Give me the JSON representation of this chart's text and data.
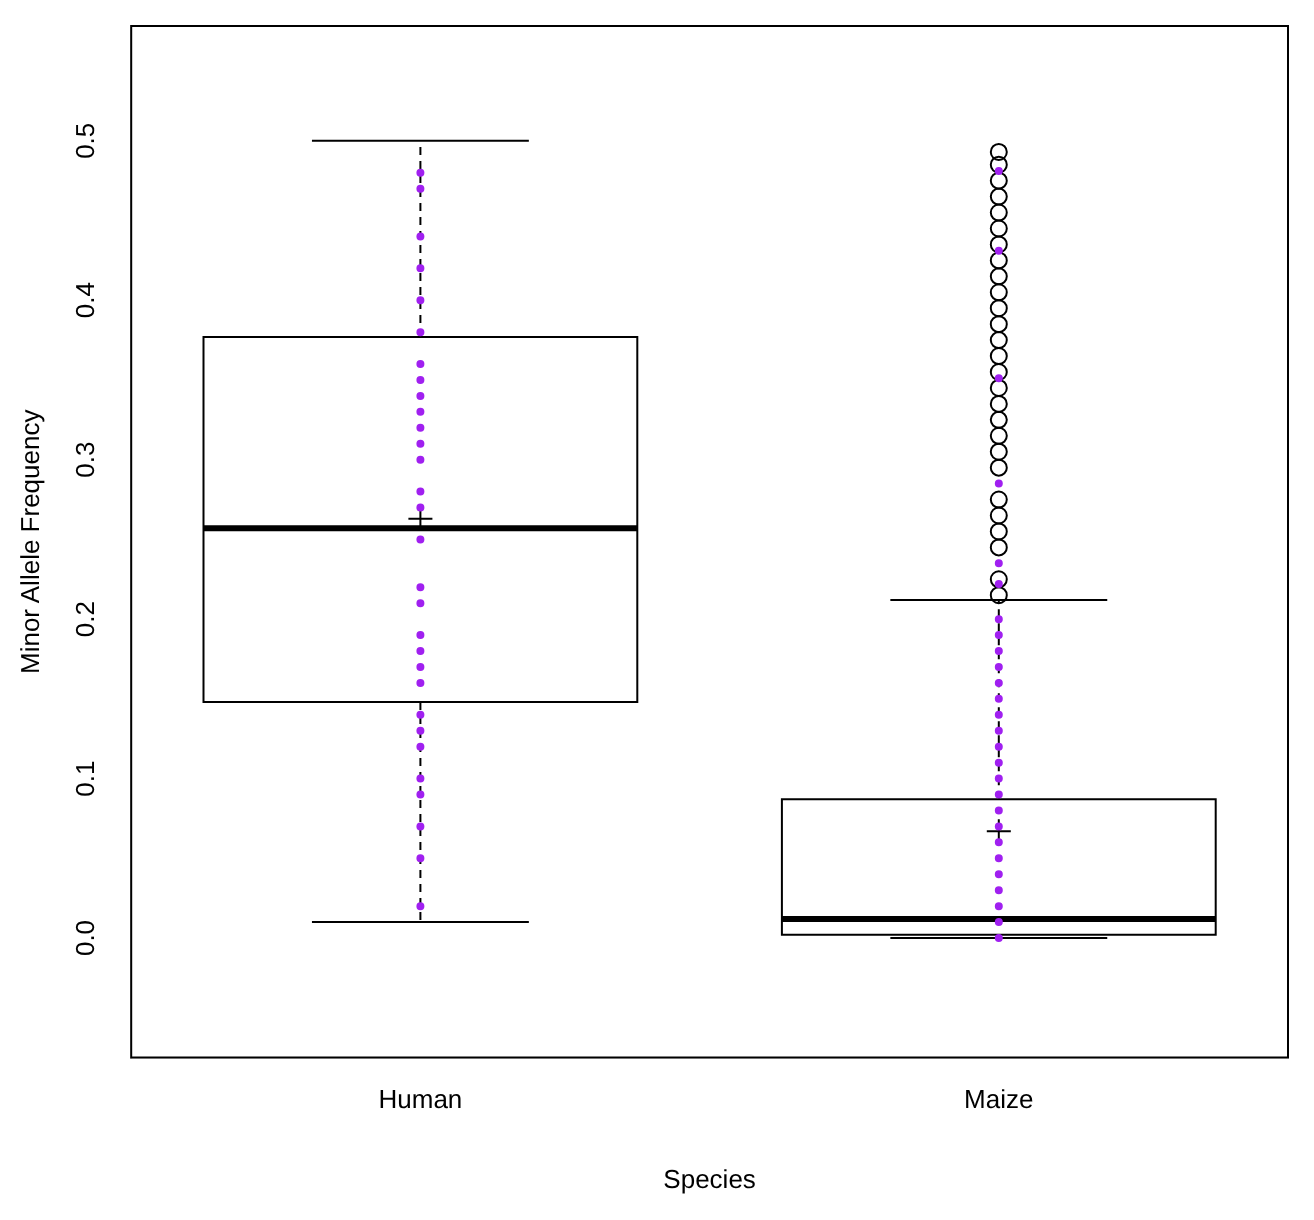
{
  "chart_data": {
    "type": "box",
    "xlabel": "Species",
    "ylabel": "Minor Allele Frequency",
    "categories": [
      "Human",
      "Maize"
    ],
    "ylim": [
      -0.075,
      0.572
    ],
    "yticks": [
      {
        "value": 0,
        "label": "0.0"
      },
      0.1,
      0.2,
      0.3,
      0.4,
      0.5
    ],
    "boxes": [
      {
        "low": 0.01,
        "q1": 0.148,
        "median": 0.257,
        "q3": 0.377,
        "high": 0.5,
        "mean": 0.263
      },
      {
        "low": 0,
        "q1": 0.002,
        "median": 0.012,
        "q3": 0.087,
        "high": 0.212,
        "mean": 0.067,
        "outliers": [
          0.215,
          0.225,
          0.245,
          0.255,
          0.265,
          0.275,
          0.295,
          0.305,
          0.315,
          0.325,
          0.335,
          0.345,
          0.355,
          0.365,
          0.375,
          0.385,
          0.395,
          0.405,
          0.415,
          0.425,
          0.435,
          0.445,
          0.455,
          0.465,
          0.475,
          0.485,
          0.493
        ]
      }
    ],
    "series": [
      {
        "type": "scatter",
        "color": "#a020f0",
        "x": [
          "Human",
          "Human",
          "Human",
          "Human",
          "Human",
          "Human",
          "Human",
          "Human",
          "Human",
          "Human",
          "Human",
          "Human",
          "Human",
          "Human",
          "Human",
          "Human",
          "Human",
          "Human",
          "Human",
          "Human",
          "Human",
          "Human",
          "Human",
          "Human",
          "Human",
          "Human",
          "Human",
          "Human",
          "Human",
          "Human"
        ],
        "values": [
          0.48,
          0.47,
          0.44,
          0.42,
          0.4,
          0.38,
          0.36,
          0.35,
          0.34,
          0.33,
          0.32,
          0.31,
          0.3,
          0.28,
          0.27,
          0.25,
          0.22,
          0.21,
          0.19,
          0.18,
          0.17,
          0.16,
          0.14,
          0.13,
          0.12,
          0.1,
          0.09,
          0.07,
          0.05,
          0.02
        ]
      },
      {
        "type": "scatter",
        "color": "#a020f0",
        "x": [
          "Maize",
          "Maize",
          "Maize",
          "Maize",
          "Maize",
          "Maize",
          "Maize",
          "Maize",
          "Maize",
          "Maize",
          "Maize",
          "Maize",
          "Maize",
          "Maize",
          "Maize",
          "Maize",
          "Maize",
          "Maize",
          "Maize",
          "Maize",
          "Maize",
          "Maize",
          "Maize",
          "Maize",
          "Maize",
          "Maize",
          "Maize"
        ],
        "values": [
          0.481,
          0.431,
          0.351,
          0.285,
          0.235,
          0.222,
          0.2,
          0.19,
          0.18,
          0.17,
          0.16,
          0.15,
          0.14,
          0.13,
          0.12,
          0.11,
          0.1,
          0.09,
          0.08,
          0.07,
          0.06,
          0.05,
          0.04,
          0.03,
          0.02,
          0.01,
          0
        ]
      }
    ]
  }
}
